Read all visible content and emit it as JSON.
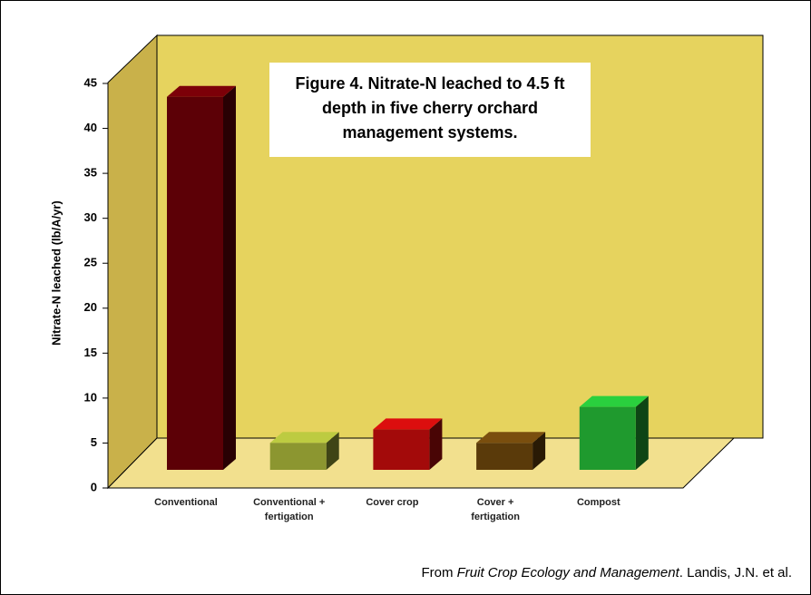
{
  "chart_data": {
    "type": "bar3d",
    "title": "Figure 4. Nitrate-N leached to 4.5 ft depth in five cherry orchard management systems.",
    "y_label": "Nitrate-N leached (lb/A/yr)",
    "categories": [
      "Conventional",
      "Conventional + fertigation",
      "Cover  crop",
      "Cover + fertigation",
      "Compost"
    ],
    "values": [
      41.5,
      3,
      4.5,
      3,
      7
    ],
    "colors": [
      "#5c0006",
      "#8c9630",
      "#a30a0a",
      "#5a3a0a",
      "#1f9a2e"
    ],
    "ylim": [
      0,
      45
    ],
    "yticks": [
      0,
      5,
      10,
      15,
      20,
      25,
      30,
      35,
      40,
      45
    ]
  },
  "source": {
    "prefix": "From ",
    "title": "Fruit Crop Ecology and Management",
    "suffix": ". Landis, J.N. et al."
  }
}
